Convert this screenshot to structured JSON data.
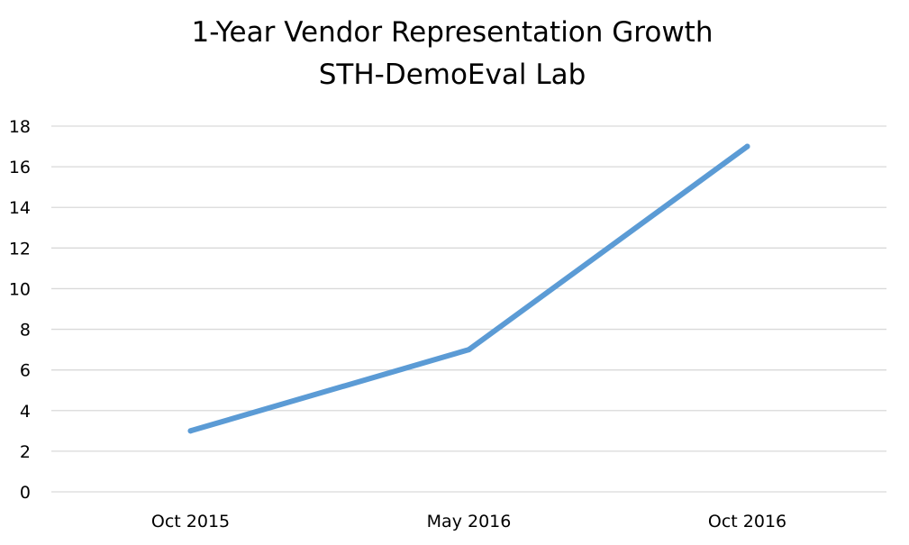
{
  "chart_data": {
    "type": "line",
    "title": "1-Year Vendor Representation Growth",
    "subtitle": "STH-DemoEval Lab",
    "categories": [
      "Oct 2015",
      "May 2016",
      "Oct 2016"
    ],
    "series": [
      {
        "values": [
          3,
          7,
          17
        ],
        "color": "#5B9BD5"
      }
    ],
    "ylim": [
      0,
      18
    ],
    "yticks": [
      "0",
      "2",
      "4",
      "6",
      "8",
      "10",
      "12",
      "14",
      "16",
      "18"
    ],
    "grid": true,
    "legend": "none"
  }
}
